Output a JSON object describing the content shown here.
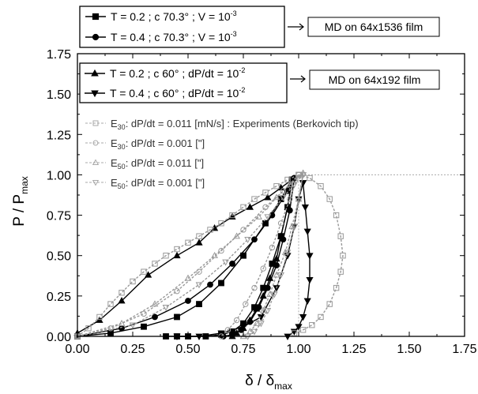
{
  "chart_data": {
    "type": "line",
    "title": "",
    "xlabel": "δ / δ",
    "xlabel_sub": "max",
    "ylabel": "P / P",
    "ylabel_sub": "max",
    "xlim": [
      0,
      1.75
    ],
    "ylim": [
      0,
      1.75
    ],
    "xticks": [
      "0.00",
      "0.25",
      "0.50",
      "0.75",
      "1.00",
      "1.25",
      "1.50",
      "1.75"
    ],
    "yticks": [
      "0.00",
      "0.25",
      "0.50",
      "0.75",
      "1.00",
      "1.25",
      "1.50",
      "1.75"
    ],
    "grid": false,
    "legends": {
      "group1": {
        "note": "MD on 64x1536 film",
        "entries": [
          {
            "marker": "square",
            "text": "T = 0.2 ; c 70.3° ; V = 10",
            "sup": "-3"
          },
          {
            "marker": "circle",
            "text": "T = 0.4 ; c 70.3° ; V = 10",
            "sup": "-3"
          }
        ]
      },
      "group2": {
        "note": "MD on 64x192 film",
        "entries": [
          {
            "marker": "triangle-up",
            "text": "T = 0.2 ; c 60° ; dP/dt = 10",
            "sup": "-2"
          },
          {
            "marker": "triangle-down",
            "text": "T = 0.4 ; c 60° ; dP/dt = 10",
            "sup": "-2"
          }
        ]
      },
      "group3": {
        "entries": [
          {
            "marker": "open-square",
            "base": "E",
            "sub": "30",
            "text": ": dP/dt = 0.011 [mN/s] : Experiments (Berkovich tip)"
          },
          {
            "marker": "open-circle",
            "base": "E",
            "sub": "30",
            "text": ": dP/dt = 0.001 [\"]"
          },
          {
            "marker": "open-triangle-up",
            "base": "E",
            "sub": "50",
            "text": ": dP/dt = 0.011 [\"]"
          },
          {
            "marker": "open-triangle-down",
            "base": "E",
            "sub": "50",
            "text": ": dP/dt = 0.001 [\"]"
          }
        ]
      }
    },
    "series": [
      {
        "name": "T = 0.2 ; c 70.3° ; V = 10-3 (loading)",
        "color": "#000000",
        "marker": "square",
        "x": [
          0.0,
          0.15,
          0.3,
          0.45,
          0.55,
          0.65,
          0.75,
          0.85,
          0.92,
          0.97
        ],
        "y": [
          0.0,
          0.02,
          0.06,
          0.12,
          0.2,
          0.33,
          0.5,
          0.7,
          0.85,
          0.97
        ]
      },
      {
        "name": "T = 0.2 ; c 70.3° ; V = 10-3 (unloading)",
        "color": "#000000",
        "marker": "square",
        "x": [
          0.97,
          0.95,
          0.92,
          0.88,
          0.84,
          0.8,
          0.75,
          0.7,
          0.65,
          0.58,
          0.5,
          0.45,
          0.4
        ],
        "y": [
          0.97,
          0.8,
          0.62,
          0.45,
          0.3,
          0.18,
          0.08,
          0.03,
          0.01,
          0.0,
          0.0,
          0.0,
          0.0
        ]
      },
      {
        "name": "T = 0.4 ; c 70.3° ; V = 10-3 (loading)",
        "color": "#000000",
        "marker": "circle",
        "x": [
          0.0,
          0.2,
          0.35,
          0.5,
          0.6,
          0.7,
          0.8,
          0.88,
          0.95,
          0.98
        ],
        "y": [
          0.0,
          0.05,
          0.12,
          0.22,
          0.32,
          0.45,
          0.6,
          0.75,
          0.9,
          0.98
        ]
      },
      {
        "name": "T = 0.4 ; c 70.3° ; V = 10-3 (unloading)",
        "color": "#000000",
        "marker": "circle",
        "x": [
          0.98,
          0.96,
          0.93,
          0.9,
          0.86,
          0.82,
          0.78,
          0.74,
          0.7,
          0.66
        ],
        "y": [
          0.98,
          0.78,
          0.6,
          0.44,
          0.3,
          0.18,
          0.09,
          0.04,
          0.01,
          0.0
        ]
      },
      {
        "name": "T = 0.2 ; c 60° ; dP/dt = 10-2 (loading)",
        "color": "#000000",
        "marker": "triangle-up",
        "x": [
          0.0,
          0.1,
          0.2,
          0.32,
          0.45,
          0.55,
          0.62,
          0.7,
          0.78,
          0.86,
          0.92,
          0.97
        ],
        "y": [
          0.02,
          0.1,
          0.22,
          0.38,
          0.5,
          0.58,
          0.67,
          0.74,
          0.8,
          0.86,
          0.92,
          0.97
        ]
      },
      {
        "name": "T = 0.2 ; c 60° ; dP/dt = 10-2 (unloading)",
        "color": "#000000",
        "marker": "triangle-up",
        "x": [
          0.97,
          0.95,
          0.92,
          0.9,
          0.87,
          0.84,
          0.81,
          0.78,
          0.75,
          0.72,
          0.7
        ],
        "y": [
          0.97,
          0.8,
          0.62,
          0.48,
          0.36,
          0.25,
          0.17,
          0.1,
          0.05,
          0.02,
          0.0
        ]
      },
      {
        "name": "T = 0.4 ; c 60° ; dP/dt = 10-2 (loading)",
        "color": "#000000",
        "marker": "triangle-down",
        "x": [
          0.45,
          0.55,
          0.65,
          0.75,
          0.83,
          0.9,
          0.95,
          0.98,
          1.0,
          1.02
        ],
        "y": [
          0.0,
          0.0,
          0.02,
          0.06,
          0.12,
          0.3,
          0.5,
          0.68,
          0.85,
          0.95
        ]
      },
      {
        "name": "T = 0.4 ; c 60° ; dP/dt = 10-2 (unloading)",
        "color": "#000000",
        "marker": "triangle-down",
        "x": [
          1.02,
          1.03,
          1.04,
          1.05,
          1.05,
          1.04,
          1.02,
          1.0,
          0.98,
          0.95
        ],
        "y": [
          0.95,
          0.8,
          0.65,
          0.5,
          0.35,
          0.22,
          0.12,
          0.06,
          0.03,
          0.0
        ]
      },
      {
        "name": "E30: dP/dt = 0.011 [mN/s] : Experiments (Berkovich tip) (loading)",
        "color": "#999999",
        "marker": "open-square",
        "x": [
          0.0,
          0.05,
          0.1,
          0.15,
          0.2,
          0.25,
          0.3,
          0.35,
          0.4,
          0.45,
          0.5,
          0.55,
          0.6,
          0.65,
          0.7,
          0.75,
          0.8,
          0.85,
          0.9,
          0.95,
          1.0
        ],
        "y": [
          0.0,
          0.05,
          0.12,
          0.2,
          0.27,
          0.34,
          0.4,
          0.45,
          0.5,
          0.54,
          0.58,
          0.62,
          0.66,
          0.7,
          0.75,
          0.8,
          0.85,
          0.89,
          0.93,
          0.97,
          1.0
        ]
      },
      {
        "name": "E30: dP/dt = 0.011 [mN/s] : Experiments (Berkovich tip) (unloading)",
        "color": "#999999",
        "marker": "open-square",
        "x": [
          1.0,
          1.05,
          1.1,
          1.14,
          1.17,
          1.19,
          1.2,
          1.19,
          1.17,
          1.14,
          1.1,
          1.06,
          1.02,
          0.98
        ],
        "y": [
          1.0,
          0.98,
          0.93,
          0.85,
          0.75,
          0.62,
          0.5,
          0.4,
          0.3,
          0.2,
          0.12,
          0.07,
          0.04,
          0.02
        ]
      },
      {
        "name": "E30: dP/dt = 0.001 [\"] (loading)",
        "color": "#999999",
        "marker": "open-circle",
        "x": [
          0.0,
          0.15,
          0.3,
          0.45,
          0.55,
          0.65,
          0.75,
          0.85,
          0.93,
          1.0
        ],
        "y": [
          0.0,
          0.05,
          0.14,
          0.28,
          0.4,
          0.53,
          0.66,
          0.8,
          0.9,
          1.0
        ]
      },
      {
        "name": "E30: dP/dt = 0.001 [\"] (unloading)",
        "color": "#999999",
        "marker": "open-circle",
        "x": [
          1.0,
          0.96,
          0.92,
          0.88,
          0.84,
          0.8,
          0.76,
          0.72,
          0.68,
          0.65
        ],
        "y": [
          1.0,
          0.85,
          0.7,
          0.55,
          0.42,
          0.3,
          0.2,
          0.1,
          0.04,
          0.0
        ]
      },
      {
        "name": "E50: dP/dt = 0.011 [\"] (loading)",
        "color": "#999999",
        "marker": "open-triangle-up",
        "x": [
          0.0,
          0.2,
          0.35,
          0.5,
          0.62,
          0.72,
          0.82,
          0.9,
          0.96,
          1.02
        ],
        "y": [
          0.0,
          0.08,
          0.2,
          0.36,
          0.5,
          0.62,
          0.74,
          0.86,
          0.94,
          1.01
        ]
      },
      {
        "name": "E50: dP/dt = 0.011 [\"] (unloading)",
        "color": "#999999",
        "marker": "open-triangle-up",
        "x": [
          1.02,
          1.0,
          0.97,
          0.94,
          0.9,
          0.87,
          0.84,
          0.81,
          0.78,
          0.75
        ],
        "y": [
          1.01,
          0.85,
          0.68,
          0.52,
          0.38,
          0.26,
          0.16,
          0.08,
          0.03,
          0.0
        ]
      },
      {
        "name": "E50: dP/dt = 0.001 [\"] (loading)",
        "color": "#999999",
        "marker": "open-triangle-down",
        "x": [
          0.0,
          0.25,
          0.4,
          0.55,
          0.67,
          0.77,
          0.86,
          0.93,
          0.98,
          1.02
        ],
        "y": [
          0.0,
          0.07,
          0.18,
          0.32,
          0.46,
          0.6,
          0.74,
          0.86,
          0.94,
          1.0
        ]
      },
      {
        "name": "E50: dP/dt = 0.001 [\"] (unloading)",
        "color": "#999999",
        "marker": "open-triangle-down",
        "x": [
          1.02,
          1.0,
          0.98,
          0.95,
          0.92,
          0.89,
          0.86,
          0.83,
          0.8,
          0.77
        ],
        "y": [
          1.0,
          0.84,
          0.68,
          0.52,
          0.38,
          0.26,
          0.16,
          0.08,
          0.03,
          0.0
        ]
      }
    ],
    "reference_lines": [
      {
        "orientation": "horizontal",
        "value": 1.0,
        "style": "dotted",
        "color": "#aaaaaa"
      },
      {
        "orientation": "vertical",
        "value": 1.0,
        "style": "dotted",
        "color": "#aaaaaa"
      }
    ]
  }
}
